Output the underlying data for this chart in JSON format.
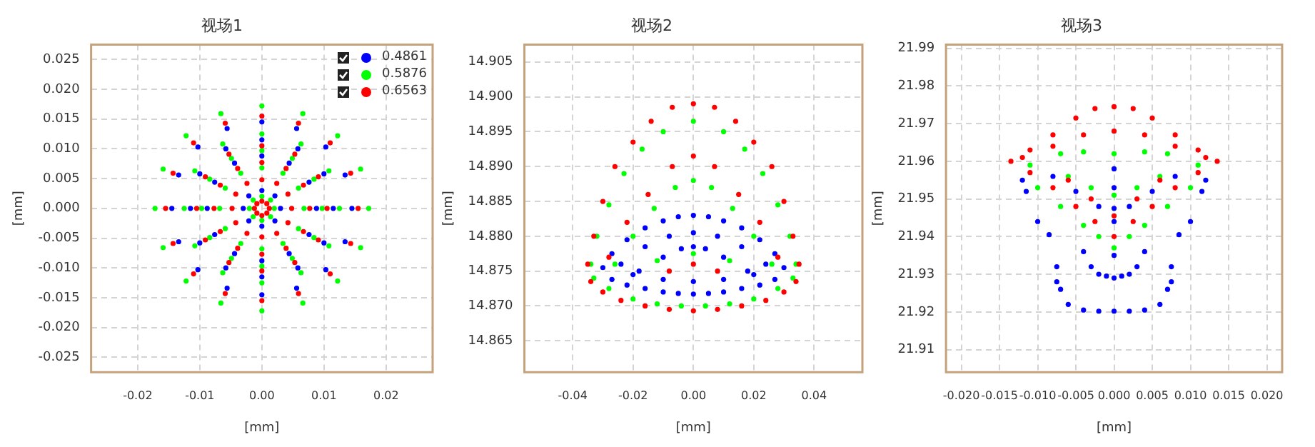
{
  "chart_data": [
    {
      "type": "scatter",
      "title": "视场1",
      "xlabel": "[mm]",
      "ylabel": "[mm]",
      "xlim": [
        -0.0275,
        0.0275
      ],
      "ylim": [
        -0.0275,
        0.0275
      ],
      "xticks": [
        {
          "value": -0.02,
          "label": "-0.02"
        },
        {
          "value": -0.01,
          "label": "-0.01"
        },
        {
          "value": 0,
          "label": "0.00"
        },
        {
          "value": 0.01,
          "label": "0.01"
        },
        {
          "value": 0.02,
          "label": "0.02"
        }
      ],
      "yticks": [
        {
          "value": -0.025,
          "label": "-0.025"
        },
        {
          "value": -0.02,
          "label": "-0.020"
        },
        {
          "value": -0.015,
          "label": "-0.015"
        },
        {
          "value": -0.01,
          "label": "-0.010"
        },
        {
          "value": -0.005,
          "label": "-0.005"
        },
        {
          "value": 0,
          "label": "0.000"
        },
        {
          "value": 0.005,
          "label": "0.005"
        },
        {
          "value": 0.01,
          "label": "0.010"
        },
        {
          "value": 0.015,
          "label": "0.015"
        },
        {
          "value": 0.02,
          "label": "0.020"
        },
        {
          "value": 0.025,
          "label": "0.025"
        }
      ],
      "grid": true,
      "legend": "top right",
      "marker": "circle",
      "series": [
        {
          "name": "0.4861",
          "color": "#0000ff",
          "x": [
            0.0145,
            0.0134,
            0.0103,
            0.0056,
            0,
            -0.0056,
            -0.0103,
            -0.0134,
            -0.0145,
            -0.0134,
            -0.0103,
            -0.0056,
            0,
            0.0056,
            0.0103,
            0.0134,
            0.0115,
            0.01,
            0.0058,
            0,
            -0.0058,
            -0.01,
            -0.0115,
            -0.01,
            -0.0058,
            0,
            0.0058,
            0.01,
            0.0088,
            0.0076,
            0.0044,
            0,
            -0.0044,
            -0.0076,
            -0.0088,
            -0.0076,
            -0.0044,
            0,
            0.0044,
            0.0076,
            0.003,
            0.0021,
            0,
            -0.0021,
            -0.003,
            -0.0021,
            0,
            0.0021
          ],
          "values": [
            0,
            0.0056,
            0.0103,
            0.0134,
            0.0145,
            0.0134,
            0.0103,
            0.0056,
            0,
            -0.0056,
            -0.0103,
            -0.0134,
            -0.0145,
            -0.0134,
            -0.0103,
            -0.0056,
            0,
            0.0058,
            0.01,
            0.0115,
            0.01,
            0.0058,
            0,
            -0.0058,
            -0.01,
            -0.0115,
            -0.01,
            -0.0058,
            0,
            0.0044,
            0.0076,
            0.0088,
            0.0076,
            0.0044,
            0,
            -0.0044,
            -0.0076,
            -0.0088,
            -0.0076,
            -0.0044,
            0,
            0.0021,
            0.003,
            0.0021,
            0,
            -0.0021,
            -0.003,
            -0.0021
          ]
        },
        {
          "name": "0.5876",
          "color": "#00ff00",
          "x": [
            0.0172,
            0.0159,
            0.0122,
            0.0066,
            0,
            -0.0066,
            -0.0122,
            -0.0159,
            -0.0172,
            -0.0159,
            -0.0122,
            -0.0066,
            0,
            0.0066,
            0.0122,
            0.0159,
            0.0125,
            0.0108,
            0.0063,
            0,
            -0.0063,
            -0.0108,
            -0.0125,
            -0.0108,
            -0.0063,
            0,
            0.0063,
            0.0108,
            0.0097,
            0.0084,
            0.0049,
            0,
            -0.0049,
            -0.0084,
            -0.0097,
            -0.0084,
            -0.0049,
            0,
            0.0049,
            0.0084,
            0.0068,
            0.0059,
            0.0034,
            0,
            -0.0034,
            -0.0059,
            -0.0068,
            -0.0059,
            -0.0034,
            0,
            0.0034,
            0.0059,
            0.002,
            0.0014,
            0,
            -0.0014,
            -0.002,
            -0.0014,
            0,
            0.0014
          ],
          "values": [
            0,
            0.0066,
            0.0122,
            0.0159,
            0.0172,
            0.0159,
            0.0122,
            0.0066,
            0,
            -0.0066,
            -0.0122,
            -0.0159,
            -0.0172,
            -0.0159,
            -0.0122,
            -0.0066,
            0,
            0.0063,
            0.0108,
            0.0125,
            0.0108,
            0.0063,
            0,
            -0.0063,
            -0.0108,
            -0.0125,
            -0.0108,
            -0.0063,
            0,
            0.0049,
            0.0084,
            0.0097,
            0.0084,
            0.0049,
            0,
            -0.0049,
            -0.0084,
            -0.0097,
            -0.0084,
            -0.0049,
            0,
            0.0034,
            0.0059,
            0.0068,
            0.0059,
            0.0034,
            0,
            -0.0034,
            -0.0059,
            -0.0068,
            -0.0059,
            -0.0034,
            0,
            0.0014,
            0.002,
            0.0014,
            0,
            -0.0014,
            -0.002,
            -0.0014
          ]
        },
        {
          "name": "0.6563",
          "color": "#ff0000",
          "x": [
            0.0155,
            0.0143,
            0.011,
            0.0059,
            0,
            -0.0059,
            -0.011,
            -0.0143,
            -0.0155,
            -0.0143,
            -0.011,
            -0.0059,
            0,
            0.0059,
            0.011,
            0.0143,
            0.0105,
            0.0091,
            0.0053,
            0,
            -0.0053,
            -0.0091,
            -0.0105,
            -0.0091,
            -0.0053,
            0,
            0.0053,
            0.0091,
            0.0077,
            0.0067,
            0.0039,
            0,
            -0.0039,
            -0.0067,
            -0.0077,
            -0.0067,
            -0.0039,
            0,
            0.0039,
            0.0067,
            0.0048,
            0.0042,
            0.0024,
            0,
            -0.0024,
            -0.0042,
            -0.0048,
            -0.0042,
            -0.0024,
            0,
            0.0024,
            0.0042,
            0.0012,
            0.0008,
            0,
            -0.0008,
            -0.0012,
            -0.0008,
            0,
            0.0008
          ],
          "values": [
            0,
            0.0059,
            0.011,
            0.0143,
            0.0155,
            0.0143,
            0.011,
            0.0059,
            0,
            -0.0059,
            -0.011,
            -0.0143,
            -0.0155,
            -0.0143,
            -0.011,
            -0.0059,
            0,
            0.0053,
            0.0091,
            0.0105,
            0.0091,
            0.0053,
            0,
            -0.0053,
            -0.0091,
            -0.0105,
            -0.0091,
            -0.0053,
            0,
            0.0039,
            0.0067,
            0.0077,
            0.0067,
            0.0039,
            0,
            -0.0039,
            -0.0067,
            -0.0077,
            -0.0067,
            -0.0039,
            0,
            0.0024,
            0.0042,
            0.0048,
            0.0042,
            0.0024,
            0,
            -0.0024,
            -0.0042,
            -0.0048,
            -0.0042,
            -0.0024,
            0,
            0.0008,
            0.0012,
            0.0008,
            0,
            -0.0008,
            -0.0012,
            -0.0008
          ]
        }
      ]
    },
    {
      "type": "scatter",
      "title": "视场2",
      "xlabel": "[mm]",
      "ylabel": "[mm]",
      "xlim": [
        -0.056,
        0.056
      ],
      "ylim": [
        14.8605,
        14.9075
      ],
      "xticks": [
        {
          "value": -0.04,
          "label": "-0.04"
        },
        {
          "value": -0.02,
          "label": "-0.02"
        },
        {
          "value": 0,
          "label": "0.00"
        },
        {
          "value": 0.02,
          "label": "0.02"
        },
        {
          "value": 0.04,
          "label": "0.04"
        }
      ],
      "yticks": [
        14.865,
        {
          "value": 14.87,
          "label": "14.870"
        },
        14.875,
        {
          "value": 14.88,
          "label": "14.880"
        },
        14.885,
        {
          "value": 14.89,
          "label": "14.890"
        },
        14.895,
        {
          "value": 14.9,
          "label": "14.900"
        },
        14.905
      ],
      "grid": true,
      "marker": "circle",
      "series": [
        {
          "color": "#0000ff",
          "x": [
            -0.03,
            -0.027,
            -0.022,
            -0.016,
            -0.01,
            -0.005,
            0,
            0.005,
            0.01,
            0.016,
            0.022,
            0.027,
            0.03,
            -0.027,
            -0.022,
            -0.016,
            -0.01,
            -0.005,
            0,
            0.005,
            0.01,
            0.016,
            0.022,
            0.027,
            -0.024,
            -0.016,
            -0.008,
            0,
            0.008,
            0.016,
            0.024,
            -0.018,
            -0.01,
            -0.004,
            0,
            0.004,
            0.01,
            0.018,
            -0.02,
            -0.01,
            0,
            0.01,
            0.02
          ],
          "values": [
            14.8755,
            14.8775,
            14.8795,
            14.8812,
            14.8822,
            14.8828,
            14.883,
            14.8828,
            14.8822,
            14.8812,
            14.8795,
            14.8775,
            14.8755,
            14.8738,
            14.873,
            14.8725,
            14.872,
            14.8718,
            14.8717,
            14.8718,
            14.872,
            14.8725,
            14.873,
            14.8738,
            14.876,
            14.8785,
            14.88,
            14.8805,
            14.88,
            14.8785,
            14.876,
            14.875,
            14.877,
            14.8782,
            14.8785,
            14.8782,
            14.877,
            14.875,
            14.8745,
            14.8738,
            14.8735,
            14.8738,
            14.8745
          ]
        },
        {
          "color": "#00ff00",
          "x": [
            -0.034,
            -0.032,
            -0.028,
            -0.023,
            -0.017,
            -0.01,
            0,
            0.01,
            0.017,
            0.023,
            0.028,
            0.032,
            0.034,
            -0.026,
            -0.02,
            -0.013,
            -0.006,
            0,
            0.006,
            0.013,
            0.02,
            0.026,
            -0.033,
            -0.028,
            -0.02,
            -0.012,
            -0.004,
            0.004,
            0.012,
            0.02,
            0.028,
            0.033,
            0,
            -0.012,
            0.012
          ],
          "values": [
            14.876,
            14.88,
            14.8845,
            14.889,
            14.8925,
            14.895,
            14.8965,
            14.895,
            14.8925,
            14.889,
            14.8845,
            14.88,
            14.876,
            14.876,
            14.88,
            14.884,
            14.887,
            14.888,
            14.887,
            14.884,
            14.88,
            14.876,
            14.874,
            14.8725,
            14.871,
            14.8703,
            14.87,
            14.87,
            14.8703,
            14.871,
            14.8725,
            14.874,
            14.8775,
            14.8765,
            14.8765
          ]
        },
        {
          "color": "#ff0000",
          "x": [
            -0.035,
            -0.033,
            -0.03,
            -0.026,
            -0.02,
            -0.014,
            -0.007,
            0,
            0.007,
            0.014,
            0.02,
            0.026,
            0.03,
            0.033,
            0.035,
            -0.028,
            -0.022,
            -0.015,
            -0.007,
            0,
            0.007,
            0.015,
            0.022,
            0.028,
            -0.034,
            -0.03,
            -0.024,
            -0.016,
            -0.008,
            0,
            0.008,
            0.016,
            0.024,
            0.03,
            0.034,
            0,
            -0.008,
            0.008
          ],
          "values": [
            14.876,
            14.88,
            14.885,
            14.89,
            14.8935,
            14.8965,
            14.8985,
            14.899,
            14.8985,
            14.8965,
            14.8935,
            14.89,
            14.885,
            14.88,
            14.876,
            14.877,
            14.882,
            14.886,
            14.89,
            14.8915,
            14.89,
            14.886,
            14.882,
            14.877,
            14.8735,
            14.872,
            14.8708,
            14.87,
            14.8695,
            14.8693,
            14.8695,
            14.87,
            14.8708,
            14.872,
            14.8735,
            14.876,
            14.875,
            14.875
          ]
        }
      ]
    },
    {
      "type": "scatter",
      "title": "视场3",
      "xlabel": "[mm]",
      "ylabel": "[mm]",
      "xlim": [
        -0.022,
        0.022
      ],
      "ylim": [
        21.904,
        21.991
      ],
      "xticks": [
        {
          "value": -0.02,
          "label": "-0.020"
        },
        {
          "value": -0.015,
          "label": "-0.015"
        },
        {
          "value": -0.01,
          "label": "-0.010"
        },
        {
          "value": -0.005,
          "label": "-0.005"
        },
        {
          "value": 0,
          "label": "0.000"
        },
        {
          "value": 0.005,
          "label": "0.005"
        },
        {
          "value": 0.01,
          "label": "0.010"
        },
        {
          "value": 0.015,
          "label": "0.015"
        },
        {
          "value": 0.02,
          "label": "0.020"
        }
      ],
      "yticks": [
        21.91,
        21.92,
        21.93,
        21.94,
        21.95,
        21.96,
        21.97,
        21.98,
        21.99
      ],
      "grid": true,
      "marker": "circle",
      "series": [
        {
          "color": "#0000ff",
          "x": [
            -0.012,
            -0.0115,
            -0.01,
            -0.0085,
            -0.0075,
            -0.0075,
            -0.007,
            -0.006,
            -0.004,
            -0.002,
            0,
            0.002,
            0.004,
            0.006,
            0.007,
            0.0075,
            0.0075,
            0.0085,
            0.01,
            0.0115,
            0.012,
            -0.003,
            -0.002,
            -0.001,
            0,
            0.001,
            0.002,
            0.003,
            -0.008,
            -0.005,
            -0.002,
            0,
            0.002,
            0.005,
            0.008,
            0,
            0,
            0,
            0,
            -0.004,
            0.004
          ],
          "values": [
            21.955,
            21.952,
            21.944,
            21.9405,
            21.932,
            21.928,
            21.926,
            21.922,
            21.9205,
            21.9202,
            21.9202,
            21.9202,
            21.9205,
            21.922,
            21.926,
            21.928,
            21.932,
            21.9405,
            21.944,
            21.952,
            21.955,
            21.932,
            21.93,
            21.9295,
            21.929,
            21.9295,
            21.93,
            21.932,
            21.956,
            21.952,
            21.948,
            21.9475,
            21.948,
            21.952,
            21.956,
            21.958,
            21.953,
            21.944,
            21.935,
            21.936,
            21.936
          ]
        },
        {
          "color": "#00ff00",
          "x": [
            -0.011,
            -0.007,
            -0.004,
            0,
            0.004,
            0.007,
            0.011,
            -0.01,
            -0.007,
            -0.004,
            -0.002,
            0,
            0.002,
            0.004,
            0.007,
            0.01,
            -0.006,
            -0.003,
            0,
            0.003,
            0.006
          ],
          "values": [
            21.959,
            21.962,
            21.9625,
            21.962,
            21.9625,
            21.962,
            21.959,
            21.953,
            21.948,
            21.943,
            21.94,
            21.937,
            21.94,
            21.943,
            21.948,
            21.953,
            21.956,
            21.953,
            21.951,
            21.953,
            21.956
          ]
        },
        {
          "color": "#ff0000",
          "x": [
            -0.0135,
            -0.011,
            -0.008,
            -0.005,
            -0.0025,
            0,
            0.0025,
            0.005,
            0.008,
            0.011,
            0.0135,
            -0.012,
            -0.008,
            -0.004,
            0,
            0.004,
            0.008,
            0.012,
            -0.011,
            -0.008,
            -0.005,
            -0.0025,
            0,
            0.0025,
            0.005,
            0.008,
            0.011,
            -0.006,
            -0.003,
            0,
            0.003,
            0.006
          ],
          "values": [
            21.96,
            21.963,
            21.967,
            21.9715,
            21.974,
            21.9745,
            21.974,
            21.9715,
            21.967,
            21.963,
            21.96,
            21.961,
            21.964,
            21.967,
            21.968,
            21.967,
            21.964,
            21.961,
            21.957,
            21.953,
            21.948,
            21.944,
            21.94,
            21.944,
            21.948,
            21.953,
            21.957,
            21.955,
            21.95,
            21.9455,
            21.95,
            21.955
          ]
        }
      ]
    }
  ]
}
